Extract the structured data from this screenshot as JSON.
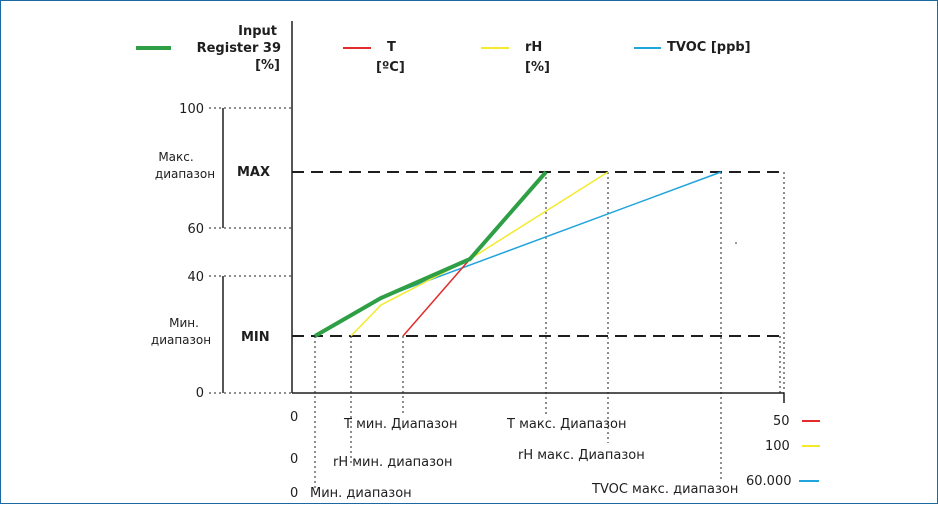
{
  "colors": {
    "input_register": "#2e9f44",
    "temperature": "#e32b2b",
    "humidity": "#f4ea2c",
    "tvoc": "#1fa4dc",
    "axis": "#1e1e1e"
  },
  "legend": {
    "input_register": [
      "Input",
      "Register 39",
      "[%]"
    ],
    "temperature": [
      "T",
      "[ºC]"
    ],
    "humidity": [
      "rH",
      "[%]"
    ],
    "tvoc": "TVOC [ppb]"
  },
  "y_axis": {
    "ticks": [
      "100",
      "60",
      "40",
      "0"
    ],
    "max_range_label": [
      "Макс.",
      "диапазон"
    ],
    "min_range_label": [
      "Мин.",
      "диапазон"
    ],
    "max_label": "MAX",
    "min_label": "MIN"
  },
  "x_axis": {
    "t_min": "T мин. Диапазон",
    "t_max": "T макс. Диапазон",
    "rh_min": "rH мин. диапазон",
    "rh_max": "rH макс. Диапазон",
    "min_range": "Мин. диапазон",
    "tvoc_max": "TVOC макс. диапазон",
    "zeros": [
      "0",
      "0",
      "0"
    ],
    "scale_t": "50",
    "scale_rh": "100",
    "scale_tvoc": "60.000"
  }
}
